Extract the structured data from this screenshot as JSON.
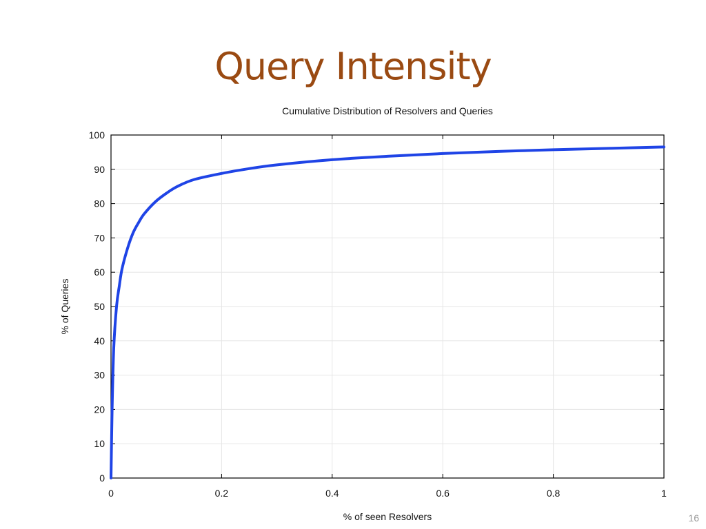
{
  "slide": {
    "title": "Query Intensity",
    "page_number": "16",
    "title_color": "#9a4a12"
  },
  "chart_data": {
    "type": "line",
    "title": "Cumulative Distribution of Resolvers and Queries",
    "xlabel": "% of seen Resolvers",
    "ylabel": "% of Queries",
    "xlim": [
      0,
      1
    ],
    "ylim": [
      0,
      100
    ],
    "xticks": [
      0,
      0.2,
      0.4,
      0.6,
      0.8,
      1
    ],
    "xtick_labels": [
      "0",
      "0.2",
      "0.4",
      "0.6",
      "0.8",
      "1"
    ],
    "yticks": [
      0,
      10,
      20,
      30,
      40,
      50,
      60,
      70,
      80,
      90,
      100
    ],
    "ytick_labels": [
      "0",
      "10",
      "20",
      "30",
      "40",
      "50",
      "60",
      "70",
      "80",
      "90",
      "100"
    ],
    "grid": true,
    "legend": "none",
    "line_color": "#1f44e6",
    "series": [
      {
        "x": [
          0,
          0.002,
          0.005,
          0.01,
          0.015,
          0.02,
          0.03,
          0.04,
          0.05,
          0.06,
          0.08,
          0.1,
          0.12,
          0.15,
          0.2,
          0.25,
          0.3,
          0.4,
          0.5,
          0.6,
          0.7,
          0.8,
          0.9,
          1.0
        ],
        "values": [
          0,
          20,
          38,
          50,
          56,
          61,
          67,
          71.5,
          74.5,
          77,
          80.5,
          83,
          85,
          87,
          88.8,
          90.2,
          91.3,
          92.8,
          93.8,
          94.6,
          95.2,
          95.7,
          96.1,
          96.5
        ]
      }
    ]
  }
}
